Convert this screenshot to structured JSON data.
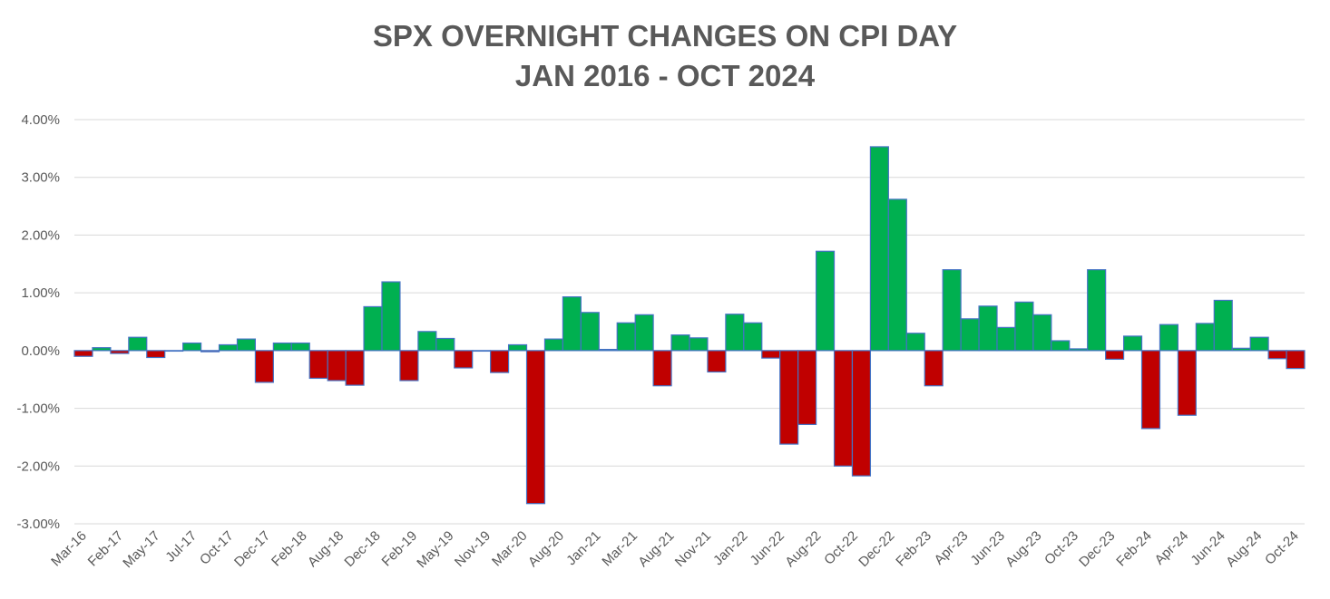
{
  "chart_data": {
    "type": "bar",
    "title": "SPX OVERNIGHT CHANGES ON CPI DAY",
    "subtitle": "JAN 2016 - OCT 2024",
    "xlabel": "",
    "ylabel": "",
    "ylim": [
      -3.0,
      4.0
    ],
    "yticks": [
      -3,
      -2,
      -1,
      0,
      1,
      2,
      3,
      4
    ],
    "ytick_labels": [
      "-3.00%",
      "-2.00%",
      "-1.00%",
      "0.00%",
      "1.00%",
      "2.00%",
      "3.00%",
      "4.00%"
    ],
    "grid": true,
    "colors": {
      "positive": "#00b050",
      "negative": "#c00000",
      "outline": "#4472c4",
      "grid": "#d9d9d9",
      "text": "#595959"
    },
    "xtick_labels": [
      "Mar-16",
      "Feb-17",
      "May-17",
      "Jul-17",
      "Oct-17",
      "Dec-17",
      "Feb-18",
      "Aug-18",
      "Dec-18",
      "Feb-19",
      "May-19",
      "Nov-19",
      "Mar-20",
      "Aug-20",
      "Jan-21",
      "Mar-21",
      "Aug-21",
      "Nov-21",
      "Jan-22",
      "Jun-22",
      "Aug-22",
      "Oct-22",
      "Dec-22",
      "Feb-23",
      "Apr-23",
      "Jun-23",
      "Aug-23",
      "Oct-23",
      "Dec-23",
      "Feb-24",
      "Apr-24",
      "Jun-24",
      "Aug-24",
      "Oct-24"
    ],
    "values": [
      -0.1,
      0.05,
      -0.05,
      0.23,
      -0.12,
      0.0,
      0.13,
      -0.02,
      0.1,
      0.2,
      -0.55,
      0.13,
      0.13,
      -0.48,
      -0.52,
      -0.6,
      0.76,
      1.19,
      -0.52,
      0.33,
      0.21,
      -0.3,
      0.0,
      -0.38,
      0.1,
      -2.65,
      0.2,
      0.93,
      0.66,
      0.02,
      0.48,
      0.62,
      -0.61,
      0.27,
      0.22,
      -0.37,
      0.63,
      0.48,
      -0.13,
      -1.62,
      -1.28,
      1.72,
      -2.0,
      -2.17,
      3.53,
      2.62,
      0.3,
      -0.61,
      1.4,
      0.55,
      0.77,
      0.4,
      0.84,
      0.62,
      0.17,
      0.03,
      1.4,
      -0.15,
      0.25,
      -1.35,
      0.45,
      -1.12,
      0.47,
      0.87,
      0.04,
      0.23,
      -0.14,
      -0.31
    ]
  }
}
